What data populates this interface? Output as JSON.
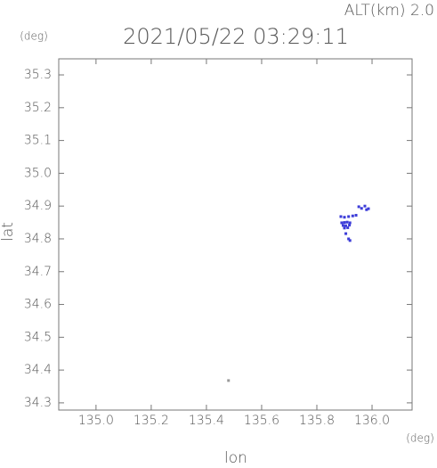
{
  "chart_data": {
    "type": "scatter",
    "title": "2021/05/22 03:29:11",
    "annotation": "ALT(km) 2.0",
    "y_unit": "(deg)",
    "x_unit": "(deg)",
    "x_label": "lon",
    "y_label": "lat",
    "xlim": [
      134.865,
      136.145
    ],
    "ylim": [
      34.278,
      35.349
    ],
    "xticks": [
      {
        "value": 135,
        "label": "135.0"
      },
      135.2,
      135.4,
      135.6,
      135.8,
      {
        "value": 136,
        "label": "136.0"
      }
    ],
    "yticks": [
      34.3,
      34.4,
      34.5,
      34.6,
      34.7,
      34.8,
      34.9,
      {
        "value": 35,
        "label": "35.0"
      },
      35.1,
      35.2,
      35.3
    ],
    "series": [
      {
        "color": "#3c3cd8",
        "x": [
          135.952,
          135.962,
          135.974,
          135.987,
          135.98,
          135.887,
          135.9,
          135.915,
          135.93,
          135.942,
          135.89,
          135.9,
          135.91,
          135.92,
          135.895,
          135.905,
          135.918,
          135.9,
          135.912,
          135.905,
          135.915,
          135.92
        ],
        "y": [
          34.898,
          34.893,
          34.9,
          34.892,
          34.889,
          34.868,
          34.866,
          34.868,
          34.87,
          34.872,
          34.849,
          34.85,
          34.851,
          34.849,
          34.841,
          34.84,
          34.842,
          34.833,
          34.834,
          34.816,
          34.8,
          34.795
        ]
      },
      {
        "color": "#999999",
        "x": [
          135.48
        ],
        "y": [
          34.368
        ]
      }
    ]
  }
}
